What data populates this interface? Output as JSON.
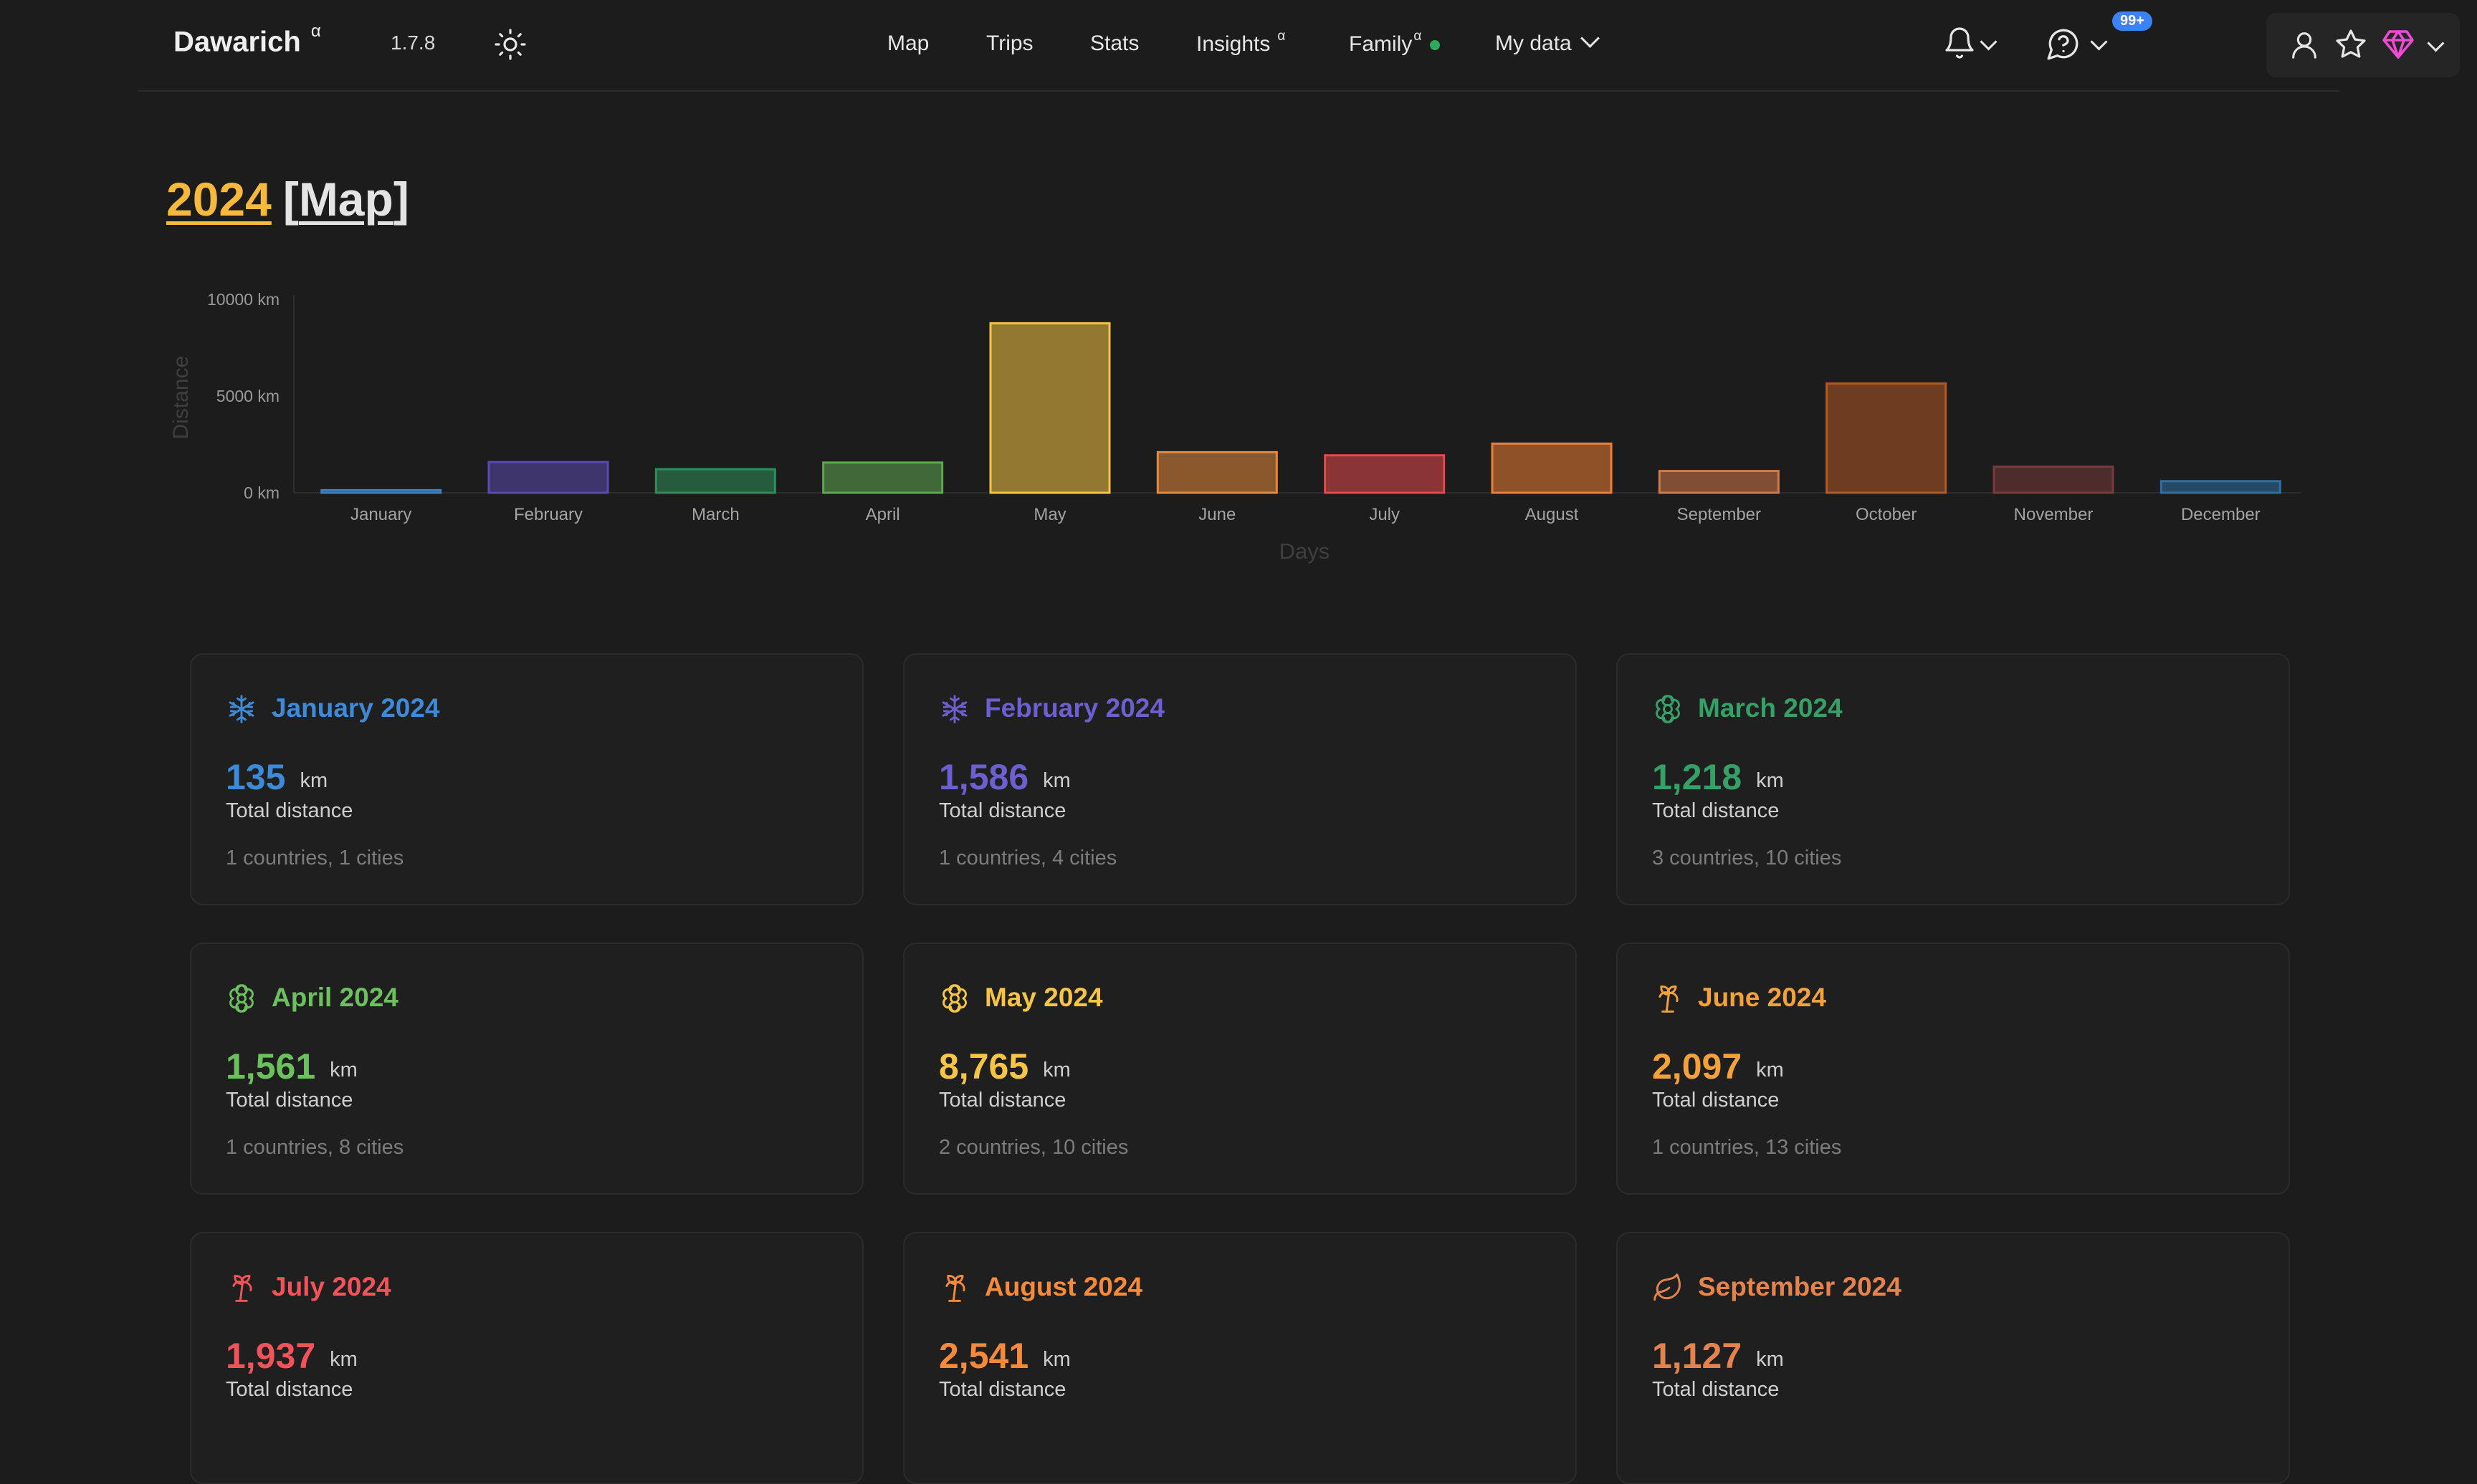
{
  "nav": {
    "brand": "Dawarich",
    "brand_sup": "α",
    "version": "1.7.8",
    "links": [
      {
        "label": "Map"
      },
      {
        "label": "Trips"
      },
      {
        "label": "Stats"
      },
      {
        "label": "Insights",
        "sup": "α"
      },
      {
        "label": "Family",
        "sup": "α",
        "status_dot": true
      },
      {
        "label": "My data",
        "dropdown": true
      }
    ],
    "notifications_badge": "99+",
    "icons": [
      "sun-icon",
      "bell-icon",
      "help-circle-icon",
      "user-icon",
      "star-icon",
      "gem-icon"
    ]
  },
  "heading": {
    "year": "2024",
    "map_prefix": "[",
    "map_link": "Map",
    "map_suffix": "]"
  },
  "chart_data": {
    "type": "bar",
    "xlabel": "Days",
    "ylabel": "Distance",
    "yticks": [
      "0 km",
      "5000 km",
      "10000 km"
    ],
    "ylim": [
      0,
      10000
    ],
    "categories": [
      "January",
      "February",
      "March",
      "April",
      "May",
      "June",
      "July",
      "August",
      "September",
      "October",
      "November",
      "December"
    ],
    "values": [
      135,
      1586,
      1218,
      1561,
      8765,
      2097,
      1937,
      2541,
      1127,
      5650,
      1350,
      600
    ],
    "colors": [
      "#3d7fbf",
      "#5b4bb0",
      "#2f8f5a",
      "#5fa850",
      "#f6c545",
      "#e8893a",
      "#e5484d",
      "#ef7d32",
      "#d2784a",
      "#b25a24",
      "#7a3a3a",
      "#2f6fa3"
    ],
    "legend": "none",
    "grid": false
  },
  "cards": [
    {
      "title": "January 2024",
      "value": "135",
      "unit": "km",
      "label": "Total distance",
      "meta": "1 countries, 1 cities",
      "color": "#3d8bd8",
      "icon": "snowflake-icon"
    },
    {
      "title": "February 2024",
      "value": "1,586",
      "unit": "km",
      "label": "Total distance",
      "meta": "1 countries, 4 cities",
      "color": "#6c5fd1",
      "icon": "snowflake-icon"
    },
    {
      "title": "March 2024",
      "value": "1,218",
      "unit": "km",
      "label": "Total distance",
      "meta": "3 countries, 10 cities",
      "color": "#36a166",
      "icon": "flower-icon"
    },
    {
      "title": "April 2024",
      "value": "1,561",
      "unit": "km",
      "label": "Total distance",
      "meta": "1 countries, 8 cities",
      "color": "#6cc05e",
      "icon": "flower-icon"
    },
    {
      "title": "May 2024",
      "value": "8,765",
      "unit": "km",
      "label": "Total distance",
      "meta": "2 countries, 10 cities",
      "color": "#f6c545",
      "icon": "flower-icon"
    },
    {
      "title": "June 2024",
      "value": "2,097",
      "unit": "km",
      "label": "Total distance",
      "meta": "1 countries, 13 cities",
      "color": "#f3a13a",
      "icon": "palm-tree-icon"
    },
    {
      "title": "July 2024",
      "value": "1,937",
      "unit": "km",
      "label": "Total distance",
      "meta": "",
      "color": "#f0535a",
      "icon": "palm-tree-icon"
    },
    {
      "title": "August 2024",
      "value": "2,541",
      "unit": "km",
      "label": "Total distance",
      "meta": "",
      "color": "#f58a3d",
      "icon": "palm-tree-icon"
    },
    {
      "title": "September 2024",
      "value": "1,127",
      "unit": "km",
      "label": "Total distance",
      "meta": "",
      "color": "#e3844f",
      "icon": "leaf-icon"
    }
  ]
}
